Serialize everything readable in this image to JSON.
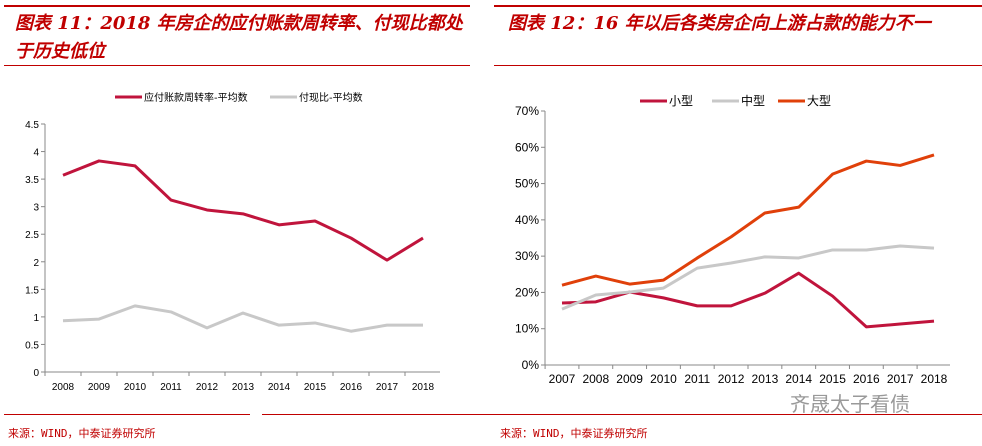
{
  "left": {
    "title": "图表 11：2018 年房企的应付账款周转率、付现比都处于历史低位",
    "source": "来源：WIND，中泰证券研究所"
  },
  "right": {
    "title": "图表 12：16 年以后各类房企向上游占款的能力不一",
    "source": "来源：WIND，中泰证券研究所"
  },
  "watermark": "齐晟太子看债",
  "chart_data": [
    {
      "type": "line",
      "categories": [
        "2008",
        "2009",
        "2010",
        "2011",
        "2012",
        "2013",
        "2014",
        "2015",
        "2016",
        "2017",
        "2018"
      ],
      "ylim": [
        0,
        4.5
      ],
      "yticks": [
        "0",
        "0.5",
        "1",
        "1.5",
        "2",
        "2.5",
        "3",
        "3.5",
        "4",
        "4.5"
      ],
      "legend": "top",
      "grid": false,
      "series": [
        {
          "name": "应付账款周转率-平均数",
          "color": "#c0143c",
          "values": [
            3.57,
            3.83,
            3.74,
            3.12,
            2.94,
            2.87,
            2.67,
            2.74,
            2.43,
            2.03,
            2.43
          ]
        },
        {
          "name": "付现比-平均数",
          "color": "#c8c8c8",
          "values": [
            0.93,
            0.96,
            1.2,
            1.09,
            0.8,
            1.07,
            0.85,
            0.89,
            0.74,
            0.85,
            0.85
          ]
        }
      ]
    },
    {
      "type": "line",
      "categories": [
        "2007",
        "2008",
        "2009",
        "2010",
        "2011",
        "2012",
        "2013",
        "2014",
        "2015",
        "2016",
        "2017",
        "2018"
      ],
      "ylim": [
        0,
        70
      ],
      "yticks": [
        "0%",
        "10%",
        "20%",
        "30%",
        "40%",
        "50%",
        "60%",
        "70%"
      ],
      "legend": "top",
      "grid": false,
      "series": [
        {
          "name": "小型",
          "color": "#c0143c",
          "values": [
            17.1,
            17.4,
            20.1,
            18.5,
            16.3,
            16.3,
            19.8,
            25.3,
            19.0,
            10.5,
            11.3,
            12.1
          ]
        },
        {
          "name": "中型",
          "color": "#c8c8c8",
          "values": [
            15.4,
            19.3,
            20.1,
            21.2,
            26.7,
            28.1,
            29.8,
            29.5,
            31.7,
            31.7,
            32.8,
            32.2
          ]
        },
        {
          "name": "大型",
          "color": "#e0400a",
          "values": [
            22.0,
            24.5,
            22.3,
            23.4,
            29.5,
            35.3,
            41.9,
            43.5,
            52.6,
            56.2,
            55.0,
            57.9
          ]
        }
      ]
    }
  ]
}
